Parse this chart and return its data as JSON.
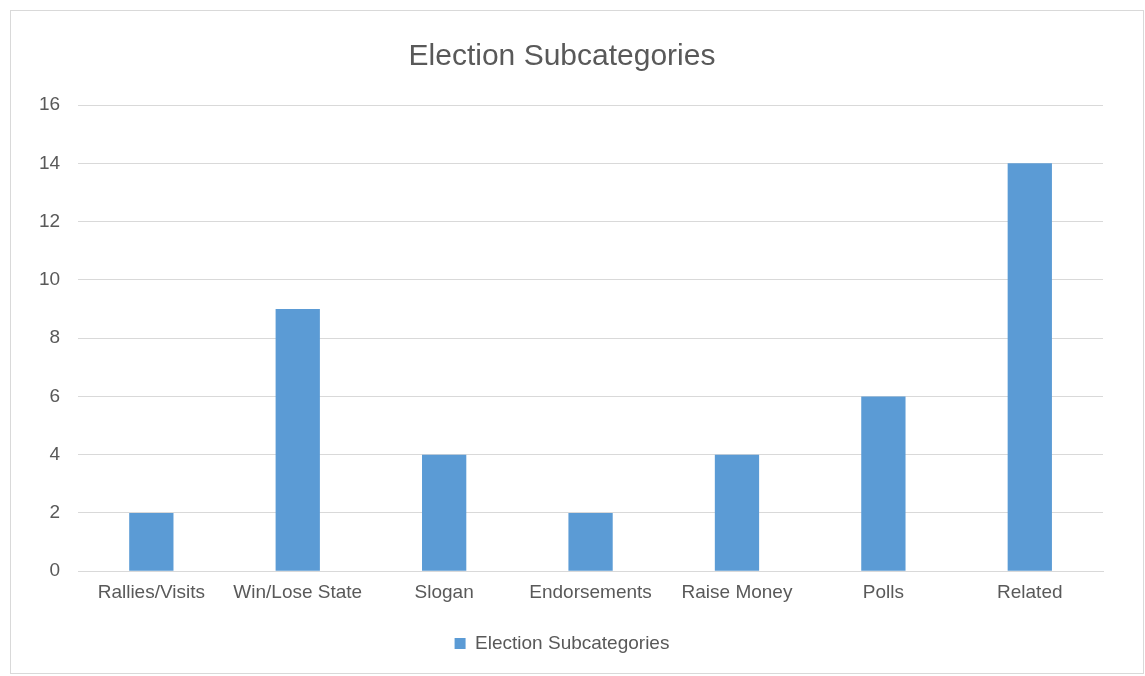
{
  "chart_data": {
    "type": "bar",
    "title": "Election Subcategories",
    "categories": [
      "Rallies/Visits",
      "Win/Lose State",
      "Slogan",
      "Endorsements",
      "Raise Money",
      "Polls",
      "Related"
    ],
    "series": [
      {
        "name": "Election Subcategories",
        "color": "#5b9bd5",
        "values": [
          2,
          9,
          4,
          2,
          4,
          6,
          14
        ]
      }
    ],
    "ylim": [
      0,
      16
    ],
    "yticks": [
      0,
      2,
      4,
      6,
      8,
      10,
      12,
      14,
      16
    ],
    "grid": "y",
    "legend": "bottom"
  }
}
